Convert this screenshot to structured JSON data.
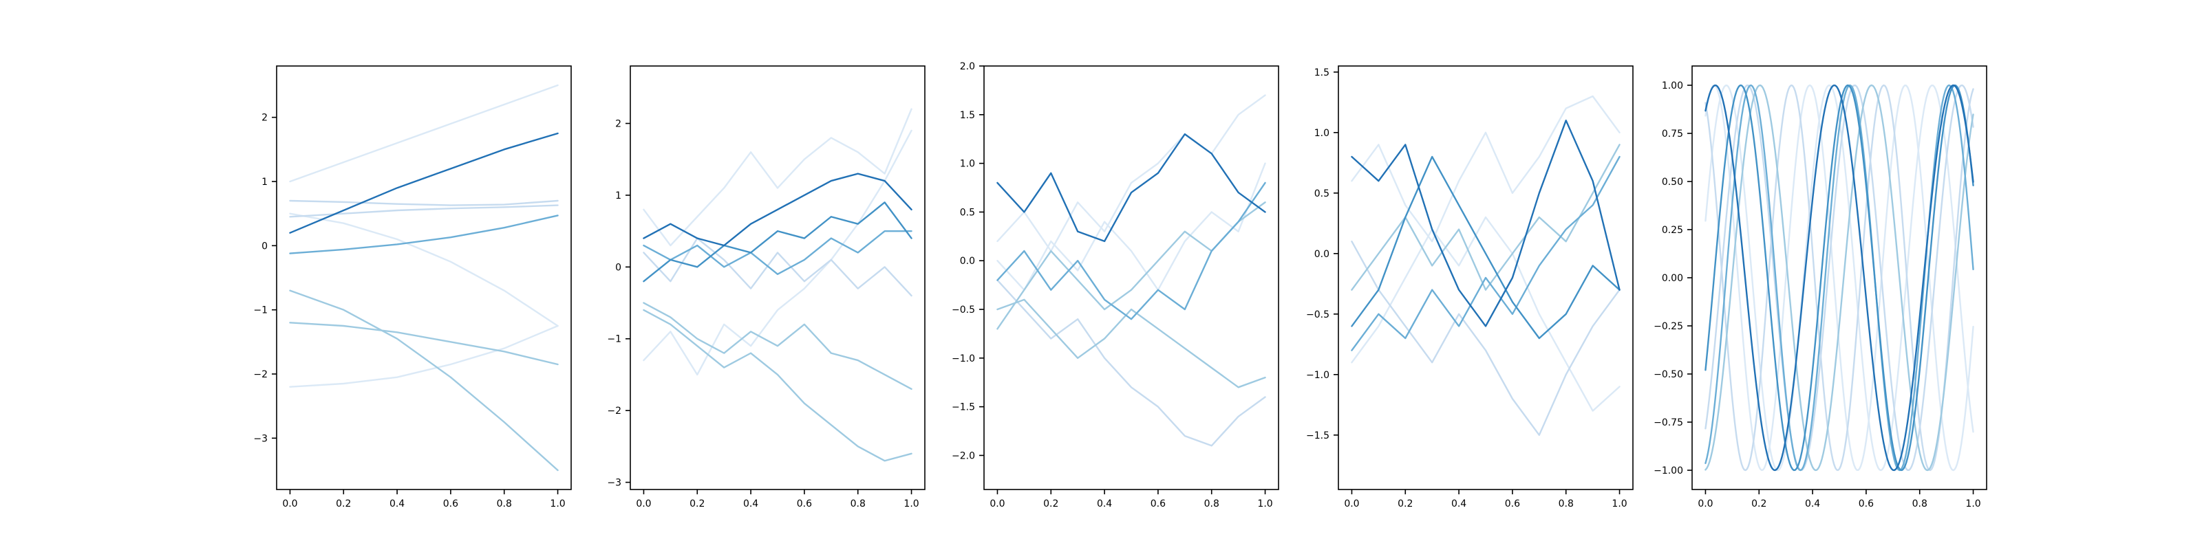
{
  "chart_data": [
    {
      "type": "line",
      "title": "",
      "xlabel": "",
      "ylabel": "",
      "xlim": [
        -0.05,
        1.05
      ],
      "ylim": [
        -3.8,
        2.8
      ],
      "xticks": [
        0.0,
        0.2,
        0.4,
        0.6,
        0.8,
        1.0
      ],
      "xtick_labels": [
        "0.0",
        "0.2",
        "0.4",
        "0.6",
        "0.8",
        "1.0"
      ],
      "yticks": [
        -3,
        -2,
        -1,
        0,
        1,
        2
      ],
      "ytick_labels": [
        "−3",
        "−2",
        "−1",
        "0",
        "1",
        "2"
      ],
      "grid": false,
      "legend": "none",
      "series": [
        {
          "color": "#dbe9f6",
          "x": [
            0,
            0.2,
            0.4,
            0.6,
            0.8,
            1.0
          ],
          "y": [
            1.0,
            1.3,
            1.6,
            1.9,
            2.2,
            2.5
          ]
        },
        {
          "color": "#dbe9f6",
          "x": [
            0,
            0.2,
            0.4,
            0.6,
            0.8,
            1.0
          ],
          "y": [
            0.5,
            0.35,
            0.1,
            -0.25,
            -0.7,
            -1.25
          ]
        },
        {
          "color": "#dbe9f6",
          "x": [
            0,
            0.2,
            0.4,
            0.6,
            0.8,
            1.0
          ],
          "y": [
            -2.2,
            -2.15,
            -2.05,
            -1.85,
            -1.6,
            -1.25
          ]
        },
        {
          "color": "#c6dbef",
          "x": [
            0,
            0.2,
            0.4,
            0.6,
            0.8,
            1.0
          ],
          "y": [
            0.7,
            0.68,
            0.65,
            0.63,
            0.64,
            0.7
          ]
        },
        {
          "color": "#c6dbef",
          "x": [
            0,
            0.2,
            0.4,
            0.6,
            0.8,
            1.0
          ],
          "y": [
            0.45,
            0.5,
            0.55,
            0.58,
            0.6,
            0.63
          ]
        },
        {
          "color": "#9ecae1",
          "x": [
            0,
            0.2,
            0.4,
            0.6,
            0.8,
            1.0
          ],
          "y": [
            -1.2,
            -1.25,
            -1.35,
            -1.5,
            -1.65,
            -1.85
          ]
        },
        {
          "color": "#9ecae1",
          "x": [
            0,
            0.2,
            0.4,
            0.6,
            0.8,
            1.0
          ],
          "y": [
            -0.7,
            -1.0,
            -1.45,
            -2.05,
            -2.75,
            -3.5
          ]
        },
        {
          "color": "#6baed6",
          "x": [
            0,
            0.2,
            0.4,
            0.6,
            0.8,
            1.0
          ],
          "y": [
            -0.12,
            -0.06,
            0.02,
            0.13,
            0.28,
            0.47
          ]
        },
        {
          "color": "#2171b5",
          "x": [
            0,
            0.2,
            0.4,
            0.6,
            0.8,
            1.0
          ],
          "y": [
            0.2,
            0.55,
            0.9,
            1.2,
            1.5,
            1.75
          ]
        }
      ]
    },
    {
      "type": "line",
      "title": "",
      "xlabel": "",
      "ylabel": "",
      "xlim": [
        -0.05,
        1.05
      ],
      "ylim": [
        -3.1,
        2.8
      ],
      "xticks": [
        0.0,
        0.2,
        0.4,
        0.6,
        0.8,
        1.0
      ],
      "xtick_labels": [
        "0.0",
        "0.2",
        "0.4",
        "0.6",
        "0.8",
        "1.0"
      ],
      "yticks": [
        -3,
        -2,
        -1,
        0,
        1,
        2
      ],
      "ytick_labels": [
        "−3",
        "−2",
        "−1",
        "0",
        "1",
        "2"
      ],
      "grid": false,
      "legend": "none",
      "series": [
        {
          "color": "#dbe9f6",
          "x": [
            0,
            0.1,
            0.2,
            0.3,
            0.4,
            0.5,
            0.6,
            0.7,
            0.8,
            0.9,
            1.0
          ],
          "y": [
            0.8,
            0.3,
            0.7,
            1.1,
            1.6,
            1.1,
            1.5,
            1.8,
            1.6,
            1.3,
            2.2
          ]
        },
        {
          "color": "#dbe9f6",
          "x": [
            0,
            0.1,
            0.2,
            0.3,
            0.4,
            0.5,
            0.6,
            0.7,
            0.8,
            0.9,
            1.0
          ],
          "y": [
            -1.3,
            -0.9,
            -1.5,
            -0.8,
            -1.1,
            -0.6,
            -0.3,
            0.1,
            0.6,
            1.2,
            1.9
          ]
        },
        {
          "color": "#c6dbef",
          "x": [
            0,
            0.1,
            0.2,
            0.3,
            0.4,
            0.5,
            0.6,
            0.7,
            0.8,
            0.9,
            1.0
          ],
          "y": [
            0.2,
            -0.2,
            0.4,
            0.1,
            -0.3,
            0.2,
            -0.2,
            0.1,
            -0.3,
            0.0,
            -0.4
          ]
        },
        {
          "color": "#9ecae1",
          "x": [
            0,
            0.1,
            0.2,
            0.3,
            0.4,
            0.5,
            0.6,
            0.7,
            0.8,
            0.9,
            1.0
          ],
          "y": [
            -0.6,
            -0.8,
            -1.1,
            -1.4,
            -1.2,
            -1.5,
            -1.9,
            -2.2,
            -2.5,
            -2.7,
            -2.6
          ]
        },
        {
          "color": "#9ecae1",
          "x": [
            0,
            0.1,
            0.2,
            0.3,
            0.4,
            0.5,
            0.6,
            0.7,
            0.8,
            0.9,
            1.0
          ],
          "y": [
            -0.5,
            -0.7,
            -1.0,
            -1.2,
            -0.9,
            -1.1,
            -0.8,
            -1.2,
            -1.3,
            -1.5,
            -1.7
          ]
        },
        {
          "color": "#6baed6",
          "x": [
            0,
            0.1,
            0.2,
            0.3,
            0.4,
            0.5,
            0.6,
            0.7,
            0.8,
            0.9,
            1.0
          ],
          "y": [
            0.3,
            0.1,
            0.3,
            0.0,
            0.2,
            -0.1,
            0.1,
            0.4,
            0.2,
            0.5,
            0.5
          ]
        },
        {
          "color": "#4292c6",
          "x": [
            0,
            0.1,
            0.2,
            0.3,
            0.4,
            0.5,
            0.6,
            0.7,
            0.8,
            0.9,
            1.0
          ],
          "y": [
            -0.2,
            0.1,
            0.0,
            0.3,
            0.2,
            0.5,
            0.4,
            0.7,
            0.6,
            0.9,
            0.4
          ]
        },
        {
          "color": "#2171b5",
          "x": [
            0,
            0.1,
            0.2,
            0.3,
            0.4,
            0.5,
            0.6,
            0.7,
            0.8,
            0.9,
            1.0
          ],
          "y": [
            0.4,
            0.6,
            0.4,
            0.3,
            0.6,
            0.8,
            1.0,
            1.2,
            1.3,
            1.2,
            0.8
          ]
        }
      ]
    },
    {
      "type": "line",
      "title": "",
      "xlabel": "",
      "ylabel": "",
      "xlim": [
        -0.05,
        1.05
      ],
      "ylim": [
        -2.35,
        2.0
      ],
      "xticks": [
        0.0,
        0.2,
        0.4,
        0.6,
        0.8,
        1.0
      ],
      "xtick_labels": [
        "0.0",
        "0.2",
        "0.4",
        "0.6",
        "0.8",
        "1.0"
      ],
      "yticks": [
        -2.0,
        -1.5,
        -1.0,
        -0.5,
        0.0,
        0.5,
        1.0,
        1.5,
        2.0
      ],
      "ytick_labels": [
        "−2.0",
        "−1.5",
        "−1.0",
        "−0.5",
        "0.0",
        "0.5",
        "1.0",
        "1.5",
        "2.0"
      ],
      "grid": false,
      "legend": "none",
      "series": [
        {
          "color": "#dbe9f6",
          "x": [
            0,
            0.1,
            0.2,
            0.3,
            0.4,
            0.5,
            0.6,
            0.7,
            0.8,
            0.9,
            1.0
          ],
          "y": [
            0.2,
            0.5,
            0.1,
            0.6,
            0.3,
            0.8,
            1.0,
            1.3,
            1.1,
            1.5,
            1.7
          ]
        },
        {
          "color": "#dbe9f6",
          "x": [
            0,
            0.1,
            0.2,
            0.3,
            0.4,
            0.5,
            0.6,
            0.7,
            0.8,
            0.9,
            1.0
          ],
          "y": [
            0.0,
            -0.3,
            0.2,
            -0.1,
            0.4,
            0.1,
            -0.3,
            0.2,
            0.5,
            0.3,
            1.0
          ]
        },
        {
          "color": "#c6dbef",
          "x": [
            0,
            0.1,
            0.2,
            0.3,
            0.4,
            0.5,
            0.6,
            0.7,
            0.8,
            0.9,
            1.0
          ],
          "y": [
            -0.2,
            -0.5,
            -0.8,
            -0.6,
            -1.0,
            -1.3,
            -1.5,
            -1.8,
            -1.9,
            -1.6,
            -1.4
          ]
        },
        {
          "color": "#9ecae1",
          "x": [
            0,
            0.1,
            0.2,
            0.3,
            0.4,
            0.5,
            0.6,
            0.7,
            0.8,
            0.9,
            1.0
          ],
          "y": [
            -0.5,
            -0.4,
            -0.7,
            -1.0,
            -0.8,
            -0.5,
            -0.7,
            -0.9,
            -1.1,
            -1.3,
            -1.2
          ]
        },
        {
          "color": "#9ecae1",
          "x": [
            0,
            0.1,
            0.2,
            0.3,
            0.4,
            0.5,
            0.6,
            0.7,
            0.8,
            0.9,
            1.0
          ],
          "y": [
            -0.7,
            -0.3,
            0.1,
            -0.2,
            -0.5,
            -0.3,
            0.0,
            0.3,
            0.1,
            0.4,
            0.6
          ]
        },
        {
          "color": "#6baed6",
          "x": [
            0,
            0.1,
            0.2,
            0.3,
            0.4,
            0.5,
            0.6,
            0.7,
            0.8,
            0.9,
            1.0
          ],
          "y": [
            -0.2,
            0.1,
            -0.3,
            0.0,
            -0.4,
            -0.6,
            -0.3,
            -0.5,
            0.1,
            0.4,
            0.8
          ]
        },
        {
          "color": "#2171b5",
          "x": [
            0,
            0.1,
            0.2,
            0.3,
            0.4,
            0.5,
            0.6,
            0.7,
            0.8,
            0.9,
            1.0
          ],
          "y": [
            0.8,
            0.5,
            0.9,
            0.3,
            0.2,
            0.7,
            0.9,
            1.3,
            1.1,
            0.7,
            0.5
          ]
        }
      ]
    },
    {
      "type": "line",
      "title": "",
      "xlabel": "",
      "ylabel": "",
      "xlim": [
        -0.05,
        1.05
      ],
      "ylim": [
        -1.95,
        1.55
      ],
      "xticks": [
        0.0,
        0.2,
        0.4,
        0.6,
        0.8,
        1.0
      ],
      "xtick_labels": [
        "0.0",
        "0.2",
        "0.4",
        "0.6",
        "0.8",
        "1.0"
      ],
      "yticks": [
        -1.5,
        -1.0,
        -0.5,
        0.0,
        0.5,
        1.0,
        1.5
      ],
      "ytick_labels": [
        "−1.5",
        "−1.0",
        "−0.5",
        "0.0",
        "0.5",
        "1.0",
        "1.5"
      ],
      "grid": false,
      "legend": "none",
      "series": [
        {
          "color": "#dbe9f6",
          "x": [
            0,
            0.1,
            0.2,
            0.3,
            0.4,
            0.5,
            0.6,
            0.7,
            0.8,
            0.9,
            1.0
          ],
          "y": [
            0.6,
            0.9,
            0.4,
            0.1,
            0.6,
            1.0,
            0.5,
            0.8,
            1.2,
            1.3,
            1.0
          ]
        },
        {
          "color": "#dbe9f6",
          "x": [
            0,
            0.1,
            0.2,
            0.3,
            0.4,
            0.5,
            0.6,
            0.7,
            0.8,
            0.9,
            1.0
          ],
          "y": [
            -0.9,
            -0.6,
            -0.2,
            0.2,
            -0.1,
            0.3,
            0.0,
            -0.5,
            -0.9,
            -1.3,
            -1.1
          ]
        },
        {
          "color": "#c6dbef",
          "x": [
            0,
            0.1,
            0.2,
            0.3,
            0.4,
            0.5,
            0.6,
            0.7,
            0.8,
            0.9,
            1.0
          ],
          "y": [
            0.1,
            -0.3,
            -0.6,
            -0.9,
            -0.5,
            -0.8,
            -1.2,
            -1.5,
            -1.0,
            -0.6,
            -0.3
          ]
        },
        {
          "color": "#9ecae1",
          "x": [
            0,
            0.1,
            0.2,
            0.3,
            0.4,
            0.5,
            0.6,
            0.7,
            0.8,
            0.9,
            1.0
          ],
          "y": [
            -0.3,
            0.0,
            0.3,
            -0.1,
            0.2,
            -0.3,
            0.0,
            0.3,
            0.1,
            0.5,
            0.9
          ]
        },
        {
          "color": "#6baed6",
          "x": [
            0,
            0.1,
            0.2,
            0.3,
            0.4,
            0.5,
            0.6,
            0.7,
            0.8,
            0.9,
            1.0
          ],
          "y": [
            -0.8,
            -0.5,
            -0.7,
            -0.3,
            -0.6,
            -0.2,
            -0.5,
            -0.1,
            0.2,
            0.4,
            0.8
          ]
        },
        {
          "color": "#4292c6",
          "x": [
            0,
            0.1,
            0.2,
            0.3,
            0.4,
            0.5,
            0.6,
            0.7,
            0.8,
            0.9,
            1.0
          ],
          "y": [
            -0.6,
            -0.3,
            0.3,
            0.8,
            0.4,
            0.0,
            -0.4,
            -0.7,
            -0.5,
            -0.1,
            -0.3
          ]
        },
        {
          "color": "#2171b5",
          "x": [
            0,
            0.1,
            0.2,
            0.3,
            0.4,
            0.5,
            0.6,
            0.7,
            0.8,
            0.9,
            1.0
          ],
          "y": [
            0.8,
            0.6,
            0.9,
            0.2,
            -0.3,
            -0.6,
            -0.2,
            0.5,
            1.1,
            0.6,
            -0.3
          ]
        }
      ]
    },
    {
      "type": "line",
      "title": "",
      "xlabel": "",
      "ylabel": "",
      "xlim": [
        -0.05,
        1.05
      ],
      "ylim": [
        -1.1,
        1.1
      ],
      "xticks": [
        0.0,
        0.2,
        0.4,
        0.6,
        0.8,
        1.0
      ],
      "xtick_labels": [
        "0.0",
        "0.2",
        "0.4",
        "0.6",
        "0.8",
        "1.0"
      ],
      "yticks": [
        -1.0,
        -0.75,
        -0.5,
        -0.25,
        0.0,
        0.25,
        0.5,
        0.75,
        1.0
      ],
      "ytick_labels": [
        "−1.00",
        "−0.75",
        "−0.50",
        "−0.25",
        "0.00",
        "0.25",
        "0.50",
        "0.75",
        "1.00"
      ],
      "grid": false,
      "legend": "none",
      "series": [
        {
          "color": "#dbe9f6",
          "kind": "sine",
          "freq": 2.6,
          "phase": 0.3
        },
        {
          "color": "#dbe9f6",
          "kind": "sine",
          "freq": 2.8,
          "phase": 1.0
        },
        {
          "color": "#c6dbef",
          "kind": "sine",
          "freq": 2.5,
          "phase": -0.9
        },
        {
          "color": "#c6dbef",
          "kind": "sine",
          "freq": 2.9,
          "phase": 2.0
        },
        {
          "color": "#9ecae1",
          "kind": "sine",
          "freq": 2.4,
          "phase": -1.5
        },
        {
          "color": "#6baed6",
          "kind": "sine",
          "freq": 2.7,
          "phase": -1.3
        },
        {
          "color": "#4292c6",
          "kind": "sine",
          "freq": 2.5,
          "phase": -0.5
        },
        {
          "color": "#2171b5",
          "kind": "sine",
          "freq": 2.25,
          "phase": 1.05
        }
      ]
    }
  ]
}
